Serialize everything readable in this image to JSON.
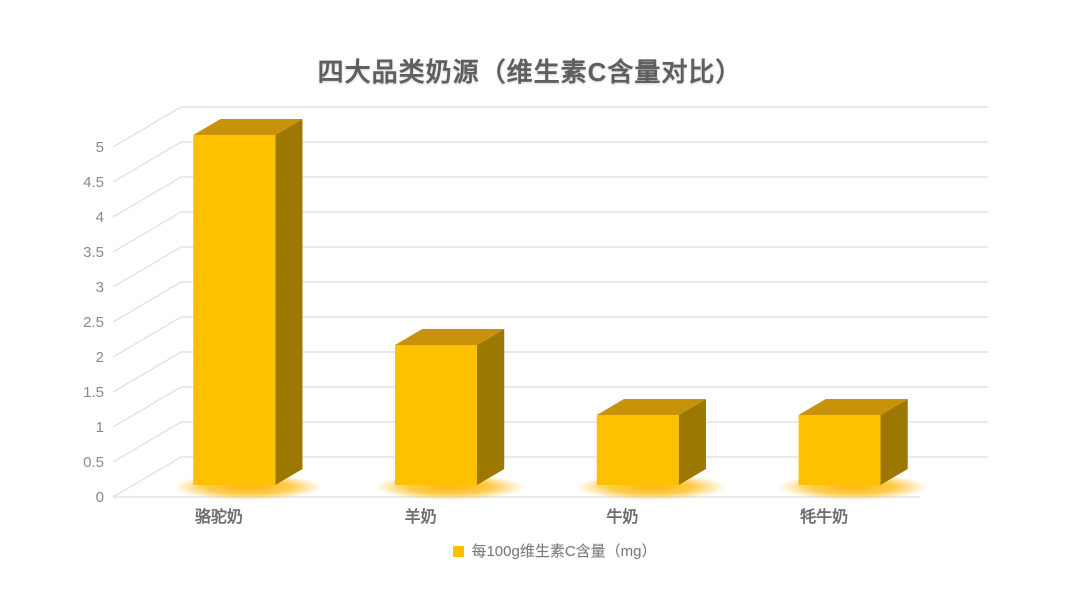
{
  "page": {
    "background_color": "#FFFFFF"
  },
  "header": {
    "title": "四大品类奶源（维生素C含量对比）"
  },
  "chart_data": {
    "type": "bar",
    "projection": "3d-oblique",
    "title": "四大品类奶源（维生素C含量对比）",
    "categories": [
      "骆驼奶",
      "羊奶",
      "牛奶",
      "牦牛奶"
    ],
    "series": [
      {
        "name": "每100g维生素C含量（mg）",
        "values": [
          5,
          2,
          1,
          1
        ]
      }
    ],
    "xlabel": "",
    "ylabel": "",
    "ylim": [
      0,
      5
    ],
    "ytick_step": 0.5,
    "ytick_labels": [
      "0",
      "0.5",
      "1",
      "1.5",
      "2",
      "2.5",
      "3",
      "3.5",
      "4",
      "4.5",
      "5"
    ],
    "grid": true,
    "legend_position": "bottom",
    "colors": {
      "bar_front": "#FFC000",
      "bar_top": "#C8920B",
      "bar_side": "#9C7800",
      "glow": "#FFB500",
      "gridline": "#DEDEDE",
      "axis_text": "#8A8A8A",
      "category_text": "#6E6E6E",
      "title_text": "#5F5F5F",
      "legend_text": "#7A7A7A"
    }
  },
  "legend": {
    "swatch_color": "#FFC000",
    "label": "每100g维生素C含量（mg）"
  }
}
